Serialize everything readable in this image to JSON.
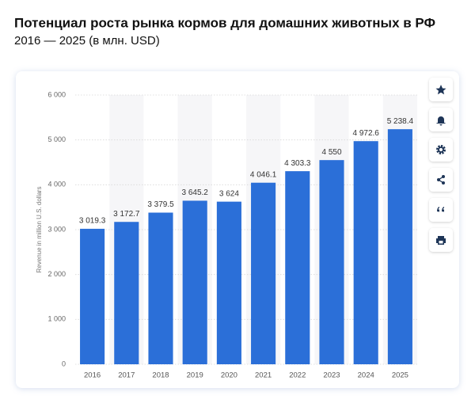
{
  "chart_data": {
    "type": "bar",
    "title": "Потенциал роста рынка кормов для домашних животных в РФ",
    "subtitle": "2016 — 2025 (в млн. USD)",
    "y_label": "Revenue in million U.S. dollars",
    "categories": [
      "2016",
      "2017",
      "2018",
      "2019",
      "2020",
      "2021",
      "2022",
      "2023",
      "2024",
      "2025"
    ],
    "values": [
      3019.3,
      3172.7,
      3379.5,
      3645.2,
      3624,
      4046.1,
      4303.3,
      4550,
      4972.6,
      5238.4
    ],
    "value_labels": [
      "3 019.3",
      "3 172.7",
      "3 379.5",
      "3 645.2",
      "3 624",
      "4 046.1",
      "4 303.3",
      "4 550",
      "4 972.6",
      "5 238.4"
    ],
    "color": "#2b6fd8",
    "ylim": [
      0,
      6000
    ],
    "yticks": [
      0,
      {
        "value": 1000,
        "label": "1 000"
      },
      {
        "value": 2000,
        "label": "2 000"
      },
      {
        "value": 3000,
        "label": "3 000"
      },
      {
        "value": 4000,
        "label": "4 000"
      },
      {
        "value": 5000,
        "label": "5 000"
      },
      {
        "value": 6000,
        "label": "6 000"
      }
    ],
    "grid": true
  }
}
